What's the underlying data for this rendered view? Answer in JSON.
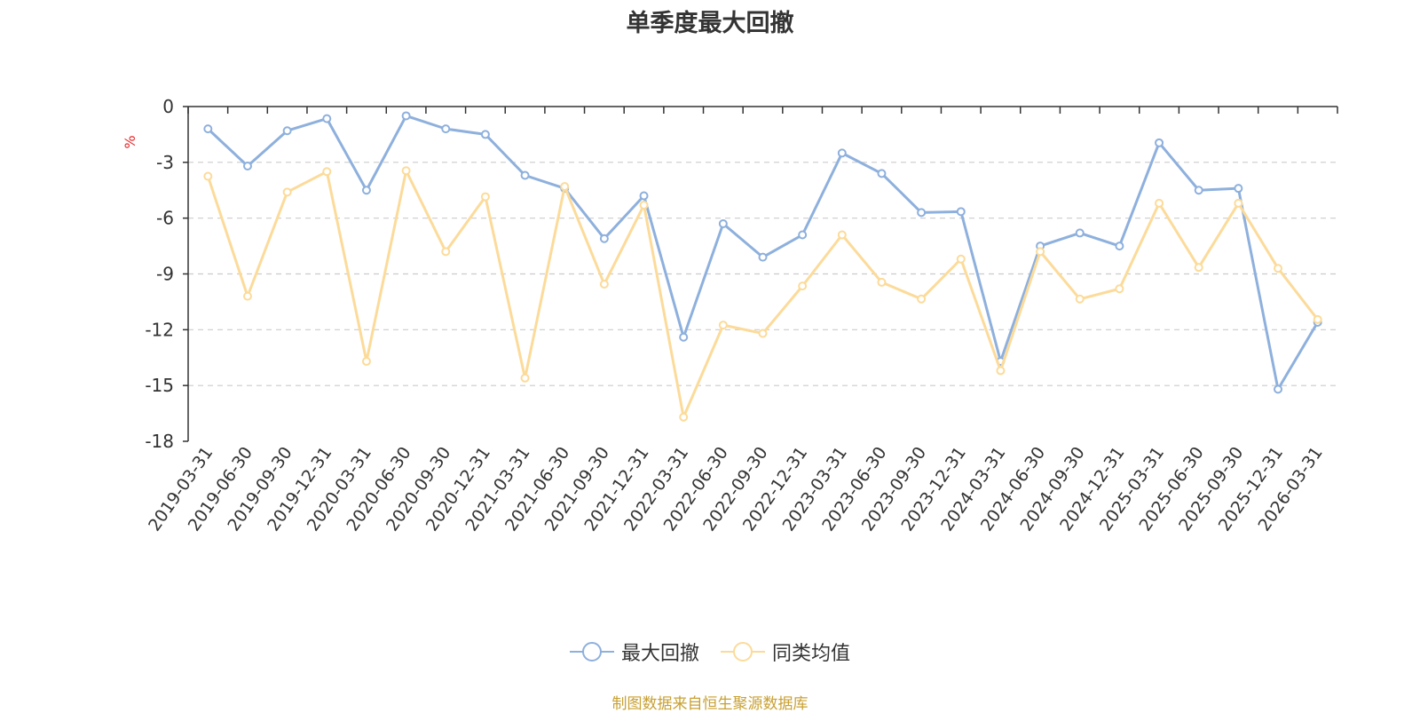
{
  "chart_data": {
    "type": "line",
    "title": "单季度最大回撤",
    "ylabel": "%",
    "xlabel": "",
    "ylim": [
      -18,
      0
    ],
    "yticks": [
      0,
      -3,
      -6,
      -9,
      -12,
      -15,
      -18
    ],
    "grid": true,
    "legend_position": "bottom-center",
    "categories": [
      "2019-03-31",
      "2019-06-30",
      "2019-09-30",
      "2019-12-31",
      "2020-03-31",
      "2020-06-30",
      "2020-09-30",
      "2020-12-31",
      "2021-03-31",
      "2021-06-30",
      "2021-09-30",
      "2021-12-31",
      "2022-03-31",
      "2022-06-30",
      "2022-09-30",
      "2022-12-31",
      "2023-03-31",
      "2023-06-30",
      "2023-09-30",
      "2023-12-31",
      "2024-03-31",
      "2024-06-30",
      "2024-09-30",
      "2024-12-31",
      "2025-03-31",
      "2025-06-30",
      "2025-09-30",
      "2025-12-31",
      "2026-03-31"
    ],
    "series": [
      {
        "name": "最大回撤",
        "color": "#8eb0dd",
        "values": [
          -1.2,
          -3.2,
          -1.3,
          -0.65,
          -4.5,
          -0.5,
          -1.2,
          -1.5,
          -3.7,
          -4.4,
          -7.1,
          -4.8,
          -12.4,
          -6.3,
          -8.1,
          -6.9,
          -2.5,
          -3.6,
          -5.7,
          -5.65,
          -13.7,
          -7.5,
          -6.8,
          -7.5,
          -1.95,
          -4.5,
          -4.4,
          -15.2,
          -11.6
        ]
      },
      {
        "name": "同类均值",
        "color": "#fcdb9a",
        "values": [
          -3.75,
          -10.2,
          -4.6,
          -3.5,
          -13.7,
          -3.45,
          -7.8,
          -4.85,
          -14.6,
          -4.3,
          -9.55,
          -5.3,
          -16.7,
          -11.75,
          -12.2,
          -9.65,
          -6.9,
          -9.45,
          -10.35,
          -8.2,
          -14.2,
          -7.8,
          -10.35,
          -9.8,
          -5.2,
          -8.65,
          -5.2,
          -8.7,
          -11.45
        ]
      }
    ]
  },
  "source_note": "制图数据来自恒生聚源数据库"
}
